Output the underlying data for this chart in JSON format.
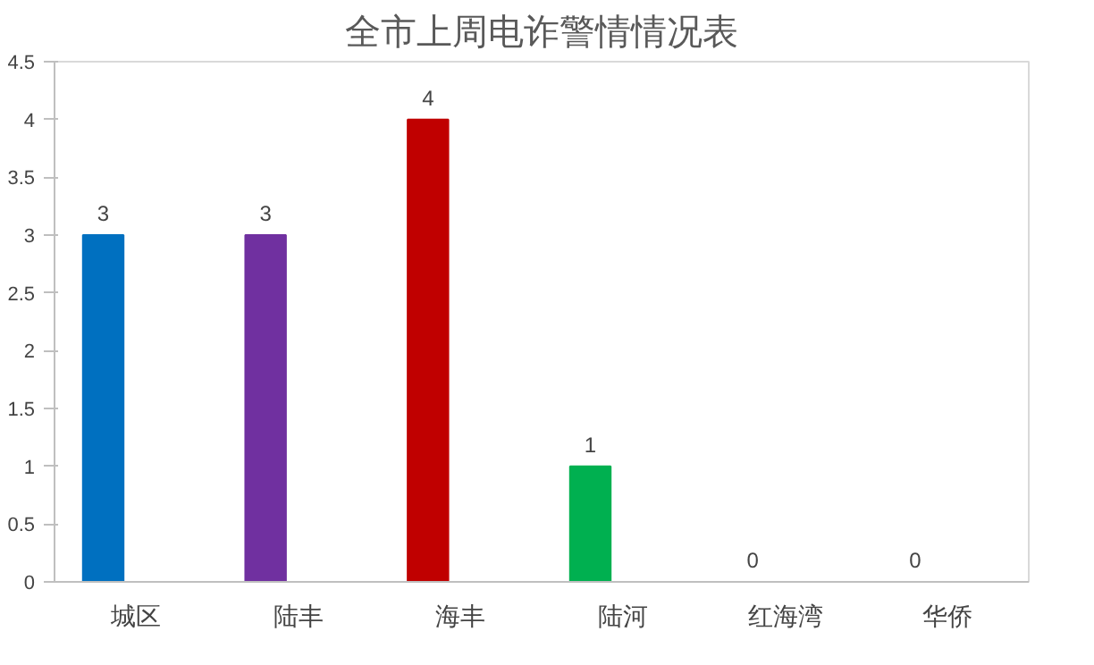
{
  "chart_data": {
    "type": "bar",
    "title": "全市上周电诈警情情况表",
    "categories": [
      "城区",
      "陆丰",
      "海丰",
      "陆河",
      "红海湾",
      "华侨"
    ],
    "values": [
      3,
      3,
      4,
      1,
      0,
      0
    ],
    "colors": [
      "#0070c0",
      "#7030a0",
      "#c00000",
      "#00b050",
      "#ffc000",
      "#002060"
    ],
    "ylim": [
      0,
      4.5
    ],
    "yticks": [
      0,
      0.5,
      1,
      1.5,
      2,
      2.5,
      3,
      3.5,
      4,
      4.5
    ],
    "data_labels": true,
    "grid": false
  }
}
